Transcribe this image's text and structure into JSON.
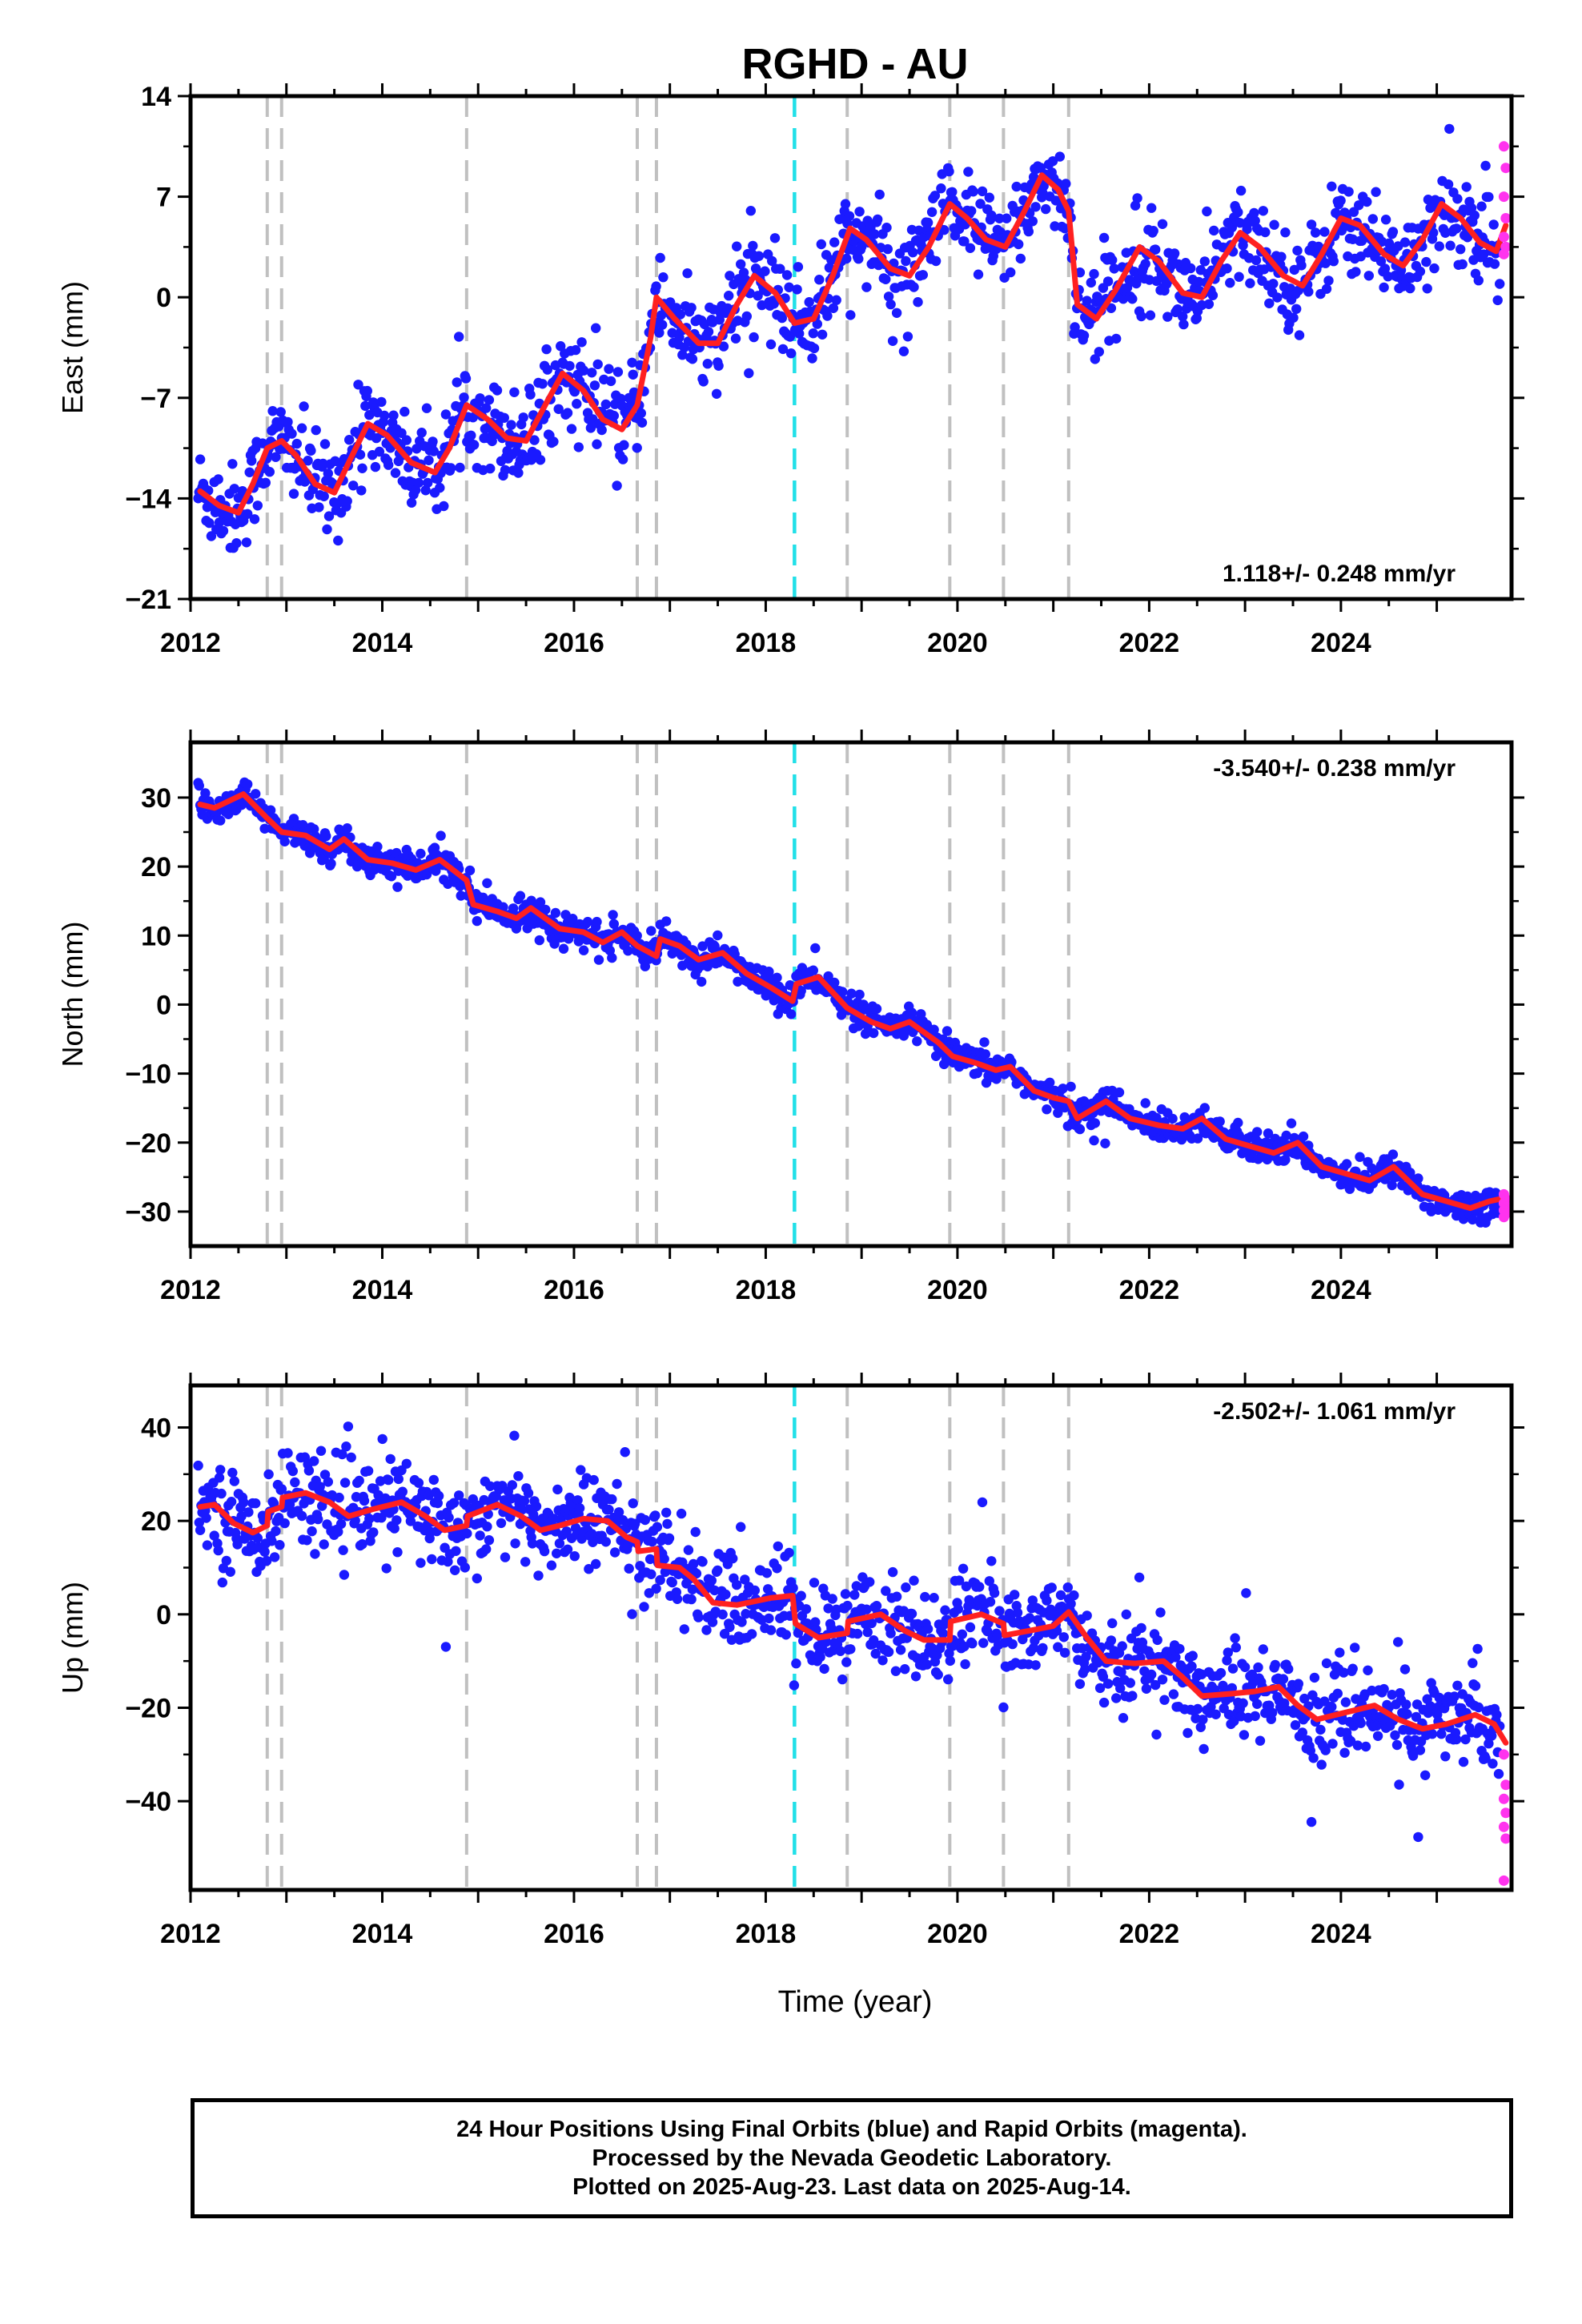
{
  "chart_data": {
    "type": "scatter",
    "title": "RGHD - AU",
    "xlabel": "Time (year)",
    "x_ticks": [
      "2012",
      "2014",
      "2016",
      "2018",
      "2020",
      "2022",
      "2024"
    ],
    "xlim": [
      2012.0,
      2025.78
    ],
    "grid": false,
    "colors": {
      "final": "#1a1aff",
      "rapid": "#ff33ee",
      "model": "#ff2020",
      "offset_gray": "#c0c0c0",
      "offset_cyan": "#22e0e8"
    },
    "offsets_gray": [
      2012.8,
      2012.95,
      2014.88,
      2016.66,
      2016.86,
      2018.85,
      2019.92,
      2020.48,
      2021.16
    ],
    "offsets_cyan": [
      2018.3
    ],
    "panels": [
      {
        "ylabel": "East (mm)",
        "ylim": [
          -21,
          14
        ],
        "y_ticks": [
          "14",
          "7",
          "0",
          "−7",
          "−14",
          "−21"
        ],
        "y_tick_values": [
          14,
          7,
          0,
          -7,
          -14,
          -21
        ],
        "rate": "1.118+/- 0.248 mm/yr",
        "rate_position": "bottom-right",
        "model": [
          [
            2012.1,
            -13.5
          ],
          [
            2012.3,
            -14.5
          ],
          [
            2012.5,
            -15.0
          ],
          [
            2012.65,
            -13.0
          ],
          [
            2012.8,
            -10.5
          ],
          [
            2012.95,
            -10.0
          ],
          [
            2013.1,
            -11.0
          ],
          [
            2013.3,
            -13.0
          ],
          [
            2013.5,
            -13.6
          ],
          [
            2013.65,
            -11.5
          ],
          [
            2013.85,
            -8.8
          ],
          [
            2014.05,
            -9.6
          ],
          [
            2014.3,
            -11.5
          ],
          [
            2014.55,
            -12.2
          ],
          [
            2014.7,
            -10.5
          ],
          [
            2014.88,
            -7.5
          ],
          [
            2015.1,
            -8.5
          ],
          [
            2015.3,
            -9.8
          ],
          [
            2015.5,
            -10.0
          ],
          [
            2015.7,
            -7.5
          ],
          [
            2015.88,
            -5.3
          ],
          [
            2016.1,
            -6.5
          ],
          [
            2016.3,
            -8.5
          ],
          [
            2016.5,
            -9.2
          ],
          [
            2016.66,
            -7.5
          ],
          [
            2016.8,
            -2.8
          ],
          [
            2016.86,
            0.0
          ],
          [
            2017.05,
            -1.5
          ],
          [
            2017.3,
            -3.2
          ],
          [
            2017.5,
            -3.2
          ],
          [
            2017.7,
            -0.5
          ],
          [
            2017.88,
            1.5
          ],
          [
            2018.1,
            0.3
          ],
          [
            2018.3,
            -1.8
          ],
          [
            2018.5,
            -1.5
          ],
          [
            2018.7,
            1.5
          ],
          [
            2018.88,
            4.8
          ],
          [
            2019.05,
            4.0
          ],
          [
            2019.3,
            2.0
          ],
          [
            2019.5,
            1.5
          ],
          [
            2019.7,
            3.5
          ],
          [
            2019.92,
            6.5
          ],
          [
            2020.1,
            5.5
          ],
          [
            2020.3,
            4.0
          ],
          [
            2020.5,
            3.5
          ],
          [
            2020.7,
            6.0
          ],
          [
            2020.88,
            8.5
          ],
          [
            2021.05,
            7.5
          ],
          [
            2021.16,
            6.0
          ],
          [
            2021.25,
            -0.5
          ],
          [
            2021.45,
            -1.5
          ],
          [
            2021.65,
            0.5
          ],
          [
            2021.9,
            3.5
          ],
          [
            2022.1,
            2.5
          ],
          [
            2022.35,
            0.3
          ],
          [
            2022.55,
            0.0
          ],
          [
            2022.75,
            2.5
          ],
          [
            2022.95,
            4.5
          ],
          [
            2023.15,
            3.5
          ],
          [
            2023.4,
            1.5
          ],
          [
            2023.6,
            0.8
          ],
          [
            2023.8,
            3.0
          ],
          [
            2024.0,
            5.5
          ],
          [
            2024.2,
            5.0
          ],
          [
            2024.45,
            3.0
          ],
          [
            2024.65,
            2.2
          ],
          [
            2024.85,
            4.0
          ],
          [
            2025.05,
            6.5
          ],
          [
            2025.25,
            5.5
          ],
          [
            2025.45,
            3.8
          ],
          [
            2025.62,
            3.2
          ],
          [
            2025.72,
            5.0
          ]
        ],
        "trend": [
          2012.1,
          -13.2,
          1.118
        ],
        "noise": 1.6,
        "rapid_values": [
          10.5,
          9.0,
          7.0,
          5.5,
          4.2,
          3.5,
          3.0
        ]
      },
      {
        "ylabel": "North (mm)",
        "ylim": [
          -35,
          38
        ],
        "y_ticks": [
          "30",
          "20",
          "10",
          "0",
          "−10",
          "−20",
          "−30"
        ],
        "y_tick_values": [
          30,
          20,
          10,
          0,
          -10,
          -20,
          -30
        ],
        "rate": "-3.540+/- 0.238 mm/yr",
        "rate_position": "top-right",
        "model": [
          [
            2012.1,
            29.0
          ],
          [
            2012.25,
            28.5
          ],
          [
            2012.55,
            30.5
          ],
          [
            2012.8,
            27.0
          ],
          [
            2012.95,
            25.0
          ],
          [
            2013.2,
            24.5
          ],
          [
            2013.45,
            22.5
          ],
          [
            2013.6,
            24.0
          ],
          [
            2013.85,
            21.0
          ],
          [
            2014.1,
            20.5
          ],
          [
            2014.35,
            19.5
          ],
          [
            2014.6,
            21.0
          ],
          [
            2014.88,
            18.0
          ],
          [
            2014.95,
            14.5
          ],
          [
            2015.2,
            13.5
          ],
          [
            2015.4,
            12.5
          ],
          [
            2015.55,
            14.0
          ],
          [
            2015.85,
            11.0
          ],
          [
            2016.1,
            10.5
          ],
          [
            2016.3,
            9.0
          ],
          [
            2016.5,
            10.5
          ],
          [
            2016.66,
            8.5
          ],
          [
            2016.86,
            7.0
          ],
          [
            2016.9,
            9.5
          ],
          [
            2017.1,
            8.5
          ],
          [
            2017.3,
            6.5
          ],
          [
            2017.55,
            7.5
          ],
          [
            2017.8,
            4.5
          ],
          [
            2018.05,
            2.5
          ],
          [
            2018.28,
            0.5
          ],
          [
            2018.32,
            3.0
          ],
          [
            2018.55,
            4.0
          ],
          [
            2018.85,
            -0.5
          ],
          [
            2019.1,
            -2.5
          ],
          [
            2019.3,
            -3.5
          ],
          [
            2019.5,
            -2.5
          ],
          [
            2019.8,
            -5.5
          ],
          [
            2019.95,
            -7.5
          ],
          [
            2020.2,
            -8.5
          ],
          [
            2020.4,
            -9.5
          ],
          [
            2020.55,
            -9.0
          ],
          [
            2020.8,
            -12.5
          ],
          [
            2021.0,
            -13.5
          ],
          [
            2021.16,
            -14.0
          ],
          [
            2021.25,
            -16.5
          ],
          [
            2021.55,
            -14.0
          ],
          [
            2021.8,
            -16.5
          ],
          [
            2022.1,
            -17.5
          ],
          [
            2022.35,
            -18.0
          ],
          [
            2022.55,
            -16.5
          ],
          [
            2022.8,
            -19.5
          ],
          [
            2023.05,
            -20.5
          ],
          [
            2023.3,
            -21.5
          ],
          [
            2023.55,
            -20.0
          ],
          [
            2023.8,
            -23.5
          ],
          [
            2024.05,
            -24.5
          ],
          [
            2024.3,
            -25.5
          ],
          [
            2024.55,
            -23.5
          ],
          [
            2024.85,
            -27.5
          ],
          [
            2025.1,
            -28.5
          ],
          [
            2025.35,
            -29.5
          ],
          [
            2025.55,
            -28.5
          ],
          [
            2025.72,
            -28.0
          ]
        ],
        "trend": [
          2012.1,
          30.0,
          -3.54
        ],
        "noise": 1.1,
        "rapid_values": [
          -27.5,
          -28.2,
          -28.8,
          -29.3,
          -29.8,
          -30.3,
          -30.8
        ]
      },
      {
        "ylabel": "Up (mm)",
        "ylim": [
          -59,
          49
        ],
        "y_ticks": [
          "40",
          "20",
          "0",
          "−20",
          "−40"
        ],
        "y_tick_values": [
          40,
          20,
          0,
          -20,
          -40
        ],
        "rate": "-2.502+/- 1.061 mm/yr",
        "rate_position": "top-right",
        "model": [
          [
            2012.1,
            23.0
          ],
          [
            2012.25,
            23.5
          ],
          [
            2012.45,
            19.5
          ],
          [
            2012.65,
            17.5
          ],
          [
            2012.8,
            19.0
          ],
          [
            2012.81,
            22.0
          ],
          [
            2012.95,
            23.0
          ],
          [
            2012.96,
            25.0
          ],
          [
            2013.2,
            26.0
          ],
          [
            2013.45,
            24.0
          ],
          [
            2013.65,
            21.0
          ],
          [
            2013.9,
            22.5
          ],
          [
            2014.2,
            24.0
          ],
          [
            2014.45,
            21.0
          ],
          [
            2014.65,
            18.0
          ],
          [
            2014.88,
            19.0
          ],
          [
            2014.89,
            21.0
          ],
          [
            2015.2,
            23.5
          ],
          [
            2015.45,
            21.0
          ],
          [
            2015.65,
            18.0
          ],
          [
            2015.85,
            19.0
          ],
          [
            2016.1,
            20.5
          ],
          [
            2016.35,
            20.0
          ],
          [
            2016.55,
            16.5
          ],
          [
            2016.66,
            15.5
          ],
          [
            2016.67,
            13.5
          ],
          [
            2016.86,
            14.0
          ],
          [
            2016.87,
            10.5
          ],
          [
            2017.1,
            10.0
          ],
          [
            2017.25,
            7.5
          ],
          [
            2017.45,
            2.5
          ],
          [
            2017.7,
            2.0
          ],
          [
            2018.05,
            3.5
          ],
          [
            2018.28,
            4.0
          ],
          [
            2018.31,
            -2.0
          ],
          [
            2018.55,
            -5.0
          ],
          [
            2018.85,
            -4.0
          ],
          [
            2018.86,
            -1.5
          ],
          [
            2019.2,
            0.0
          ],
          [
            2019.45,
            -3.5
          ],
          [
            2019.65,
            -5.5
          ],
          [
            2019.92,
            -5.5
          ],
          [
            2019.93,
            -1.5
          ],
          [
            2020.25,
            0.0
          ],
          [
            2020.48,
            -2.0
          ],
          [
            2020.49,
            -4.5
          ],
          [
            2020.75,
            -3.5
          ],
          [
            2021.0,
            -2.5
          ],
          [
            2021.16,
            0.5
          ],
          [
            2021.35,
            -5.0
          ],
          [
            2021.55,
            -10.0
          ],
          [
            2021.85,
            -10.5
          ],
          [
            2022.15,
            -10.0
          ],
          [
            2022.35,
            -13.5
          ],
          [
            2022.55,
            -17.5
          ],
          [
            2022.85,
            -17.0
          ],
          [
            2023.1,
            -16.5
          ],
          [
            2023.35,
            -15.5
          ],
          [
            2023.55,
            -19.5
          ],
          [
            2023.75,
            -22.5
          ],
          [
            2024.05,
            -21.0
          ],
          [
            2024.35,
            -19.5
          ],
          [
            2024.6,
            -22.5
          ],
          [
            2024.85,
            -24.5
          ],
          [
            2025.1,
            -23.5
          ],
          [
            2025.4,
            -21.5
          ],
          [
            2025.6,
            -23.5
          ],
          [
            2025.72,
            -27.5
          ]
        ],
        "trend": [
          2012.1,
          25.0,
          -2.502
        ],
        "noise": 5.0,
        "rapid_values": [
          -30.0,
          -36.5,
          -39.5,
          -42.5,
          -45.5,
          -48.0,
          -57.0
        ]
      }
    ]
  },
  "footer": {
    "line1": "24 Hour Positions Using Final Orbits (blue) and Rapid Orbits (magenta).",
    "line2": "Processed by the Nevada Geodetic Laboratory.",
    "line3": "Plotted on 2025-Aug-23. Last data on 2025-Aug-14."
  }
}
